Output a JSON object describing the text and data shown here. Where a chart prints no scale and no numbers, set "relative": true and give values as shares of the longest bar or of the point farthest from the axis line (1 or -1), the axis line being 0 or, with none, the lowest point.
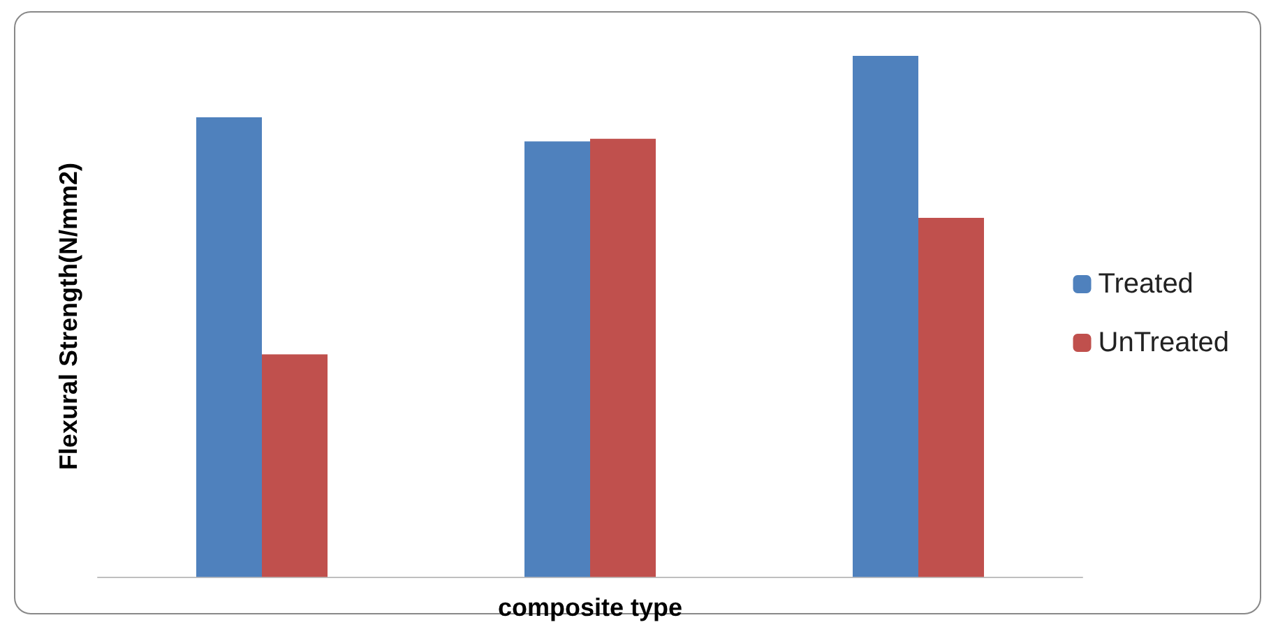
{
  "chart_data": {
    "type": "bar",
    "relative": true,
    "xlabel": "composite type",
    "ylabel": "Flexural Strength(N/mm2)",
    "categories": [
      null,
      null,
      null
    ],
    "series": [
      {
        "name": "Treated",
        "color": "#4f81bd",
        "values": [
          0.882,
          0.836,
          1
        ]
      },
      {
        "name": "UnTreated",
        "color": "#c0504d",
        "values": [
          0.427,
          0.841,
          0.689
        ]
      }
    ],
    "legend": "right",
    "grid": false
  }
}
